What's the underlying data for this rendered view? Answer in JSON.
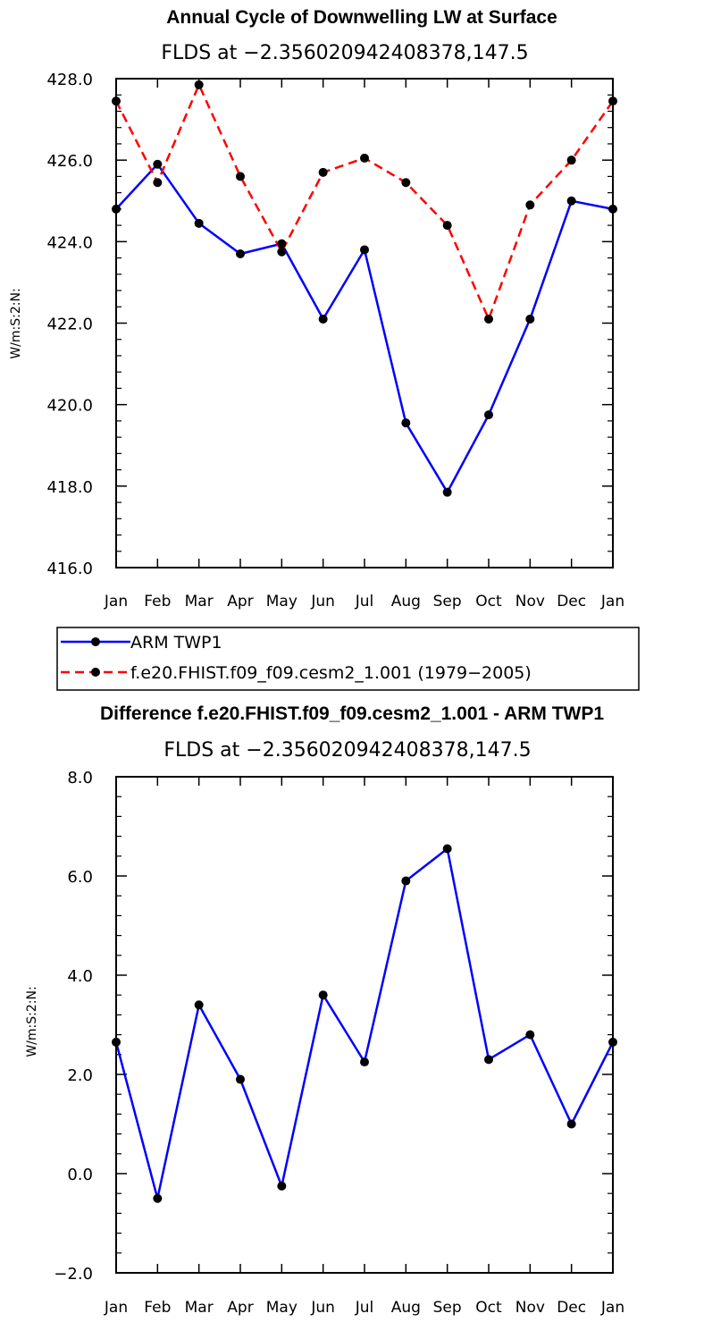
{
  "chart_data": [
    {
      "type": "line",
      "title": "Annual Cycle of Downwelling LW at Surface",
      "subtitle": "FLDS at −2.356020942408378,147.5",
      "ylabel": "W/m:S:2:N:",
      "ylim": [
        416,
        428
      ],
      "yticks": [
        "416.0",
        "418.0",
        "420.0",
        "422.0",
        "424.0",
        "426.0",
        "428.0"
      ],
      "ytick_values": [
        416,
        418,
        420,
        422,
        424,
        426,
        428
      ],
      "categories": [
        "Jan",
        "Feb",
        "Mar",
        "Apr",
        "May",
        "Jun",
        "Jul",
        "Aug",
        "Sep",
        "Oct",
        "Nov",
        "Dec",
        "Jan"
      ],
      "series": [
        {
          "name": "ARM TWP1",
          "color": "#0000ff",
          "dash": "solid",
          "values": [
            424.8,
            425.9,
            424.45,
            423.7,
            423.95,
            422.1,
            423.8,
            419.55,
            417.85,
            419.75,
            422.1,
            425.0,
            424.8
          ]
        },
        {
          "name": "f.e20.FHIST.f09_f09.cesm2_1.001 (1979−2005)",
          "color": "#ff0000",
          "dash": "dashed",
          "values": [
            427.45,
            425.45,
            427.85,
            425.6,
            423.75,
            425.7,
            426.05,
            425.45,
            424.4,
            422.1,
            424.9,
            426.0,
            427.45
          ]
        }
      ]
    },
    {
      "type": "line",
      "title": "Difference f.e20.FHIST.f09_f09.cesm2_1.001 - ARM TWP1",
      "subtitle": "FLDS at −2.356020942408378,147.5",
      "ylabel": "W/m:S:2:N:",
      "ylim": [
        -2,
        8
      ],
      "yticks": [
        "−2.0",
        "0.0",
        "2.0",
        "4.0",
        "6.0",
        "8.0"
      ],
      "ytick_values": [
        -2,
        0,
        2,
        4,
        6,
        8
      ],
      "categories": [
        "Jan",
        "Feb",
        "Mar",
        "Apr",
        "May",
        "Jun",
        "Jul",
        "Aug",
        "Sep",
        "Oct",
        "Nov",
        "Dec",
        "Jan"
      ],
      "series": [
        {
          "name": "Difference",
          "color": "#0000ff",
          "dash": "solid",
          "values": [
            2.65,
            -0.5,
            3.4,
            1.9,
            -0.25,
            3.6,
            2.25,
            5.9,
            6.55,
            2.3,
            2.8,
            1.0,
            2.65
          ]
        }
      ]
    }
  ]
}
